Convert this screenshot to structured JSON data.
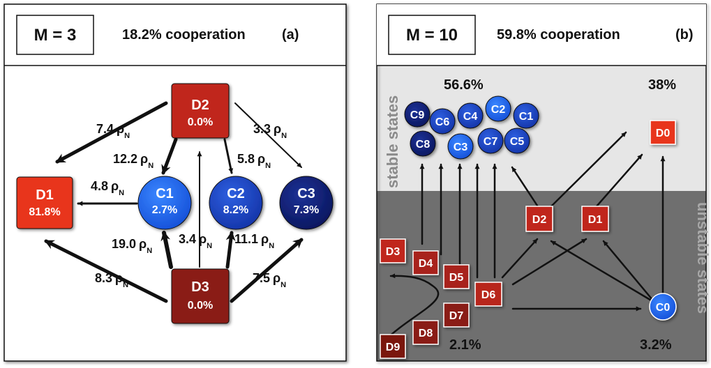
{
  "panel_a": {
    "m_label": "M = 3",
    "cooperation": "18.2% cooperation",
    "letter": "(a)",
    "nodes": {
      "D2": {
        "name": "D2",
        "value": "0.0%"
      },
      "D1": {
        "name": "D1",
        "value": "81.8%"
      },
      "C1": {
        "name": "C1",
        "value": "2.7%"
      },
      "C2": {
        "name": "C2",
        "value": "8.2%"
      },
      "C3": {
        "name": "C3",
        "value": "7.3%"
      },
      "D3": {
        "name": "D3",
        "value": "0.0%"
      }
    },
    "rates": {
      "d2_d1": "7.4",
      "d2_c3": "3.3",
      "d2_c1": "12.2",
      "d2_c2": "5.8",
      "c1_d1": "4.8",
      "d3_c1": "19.0",
      "d3_d2": "3.4",
      "d3_c2": "11.1",
      "d3_d1": "8.3",
      "d3_c3": "7.5"
    },
    "rho": "ρ",
    "rho_sub": "N"
  },
  "panel_b": {
    "m_label": "M = 10",
    "cooperation": "59.8% cooperation",
    "letter": "(b)",
    "stable_label": "stable states",
    "unstable_label": "unstable states",
    "stable_coop_pct": "56.6%",
    "stable_defect_pct": "38%",
    "unstable_defect_pct": "2.1%",
    "unstable_coop_pct": "3.2%",
    "c_nodes": [
      "C9",
      "C6",
      "C4",
      "C2",
      "C1",
      "C8",
      "C3",
      "C7",
      "C5"
    ],
    "d_nodes": {
      "D0": "D0",
      "D1": "D1",
      "D2": "D2",
      "D3": "D3",
      "D4": "D4",
      "D5": "D5",
      "D6": "D6",
      "D7": "D7",
      "D8": "D8",
      "D9": "D9",
      "C0": "C0"
    }
  },
  "colors": {
    "red_bright": "#e8341c",
    "red_mid": "#c0281a",
    "red_dark": "#8a1c12",
    "blue_bright": "#2266ee",
    "blue_mid": "#1a47cc",
    "blue_dark": "#0d1f80",
    "stable_bg": "#e6e6e6",
    "unstable_bg": "#6f6f6f"
  }
}
